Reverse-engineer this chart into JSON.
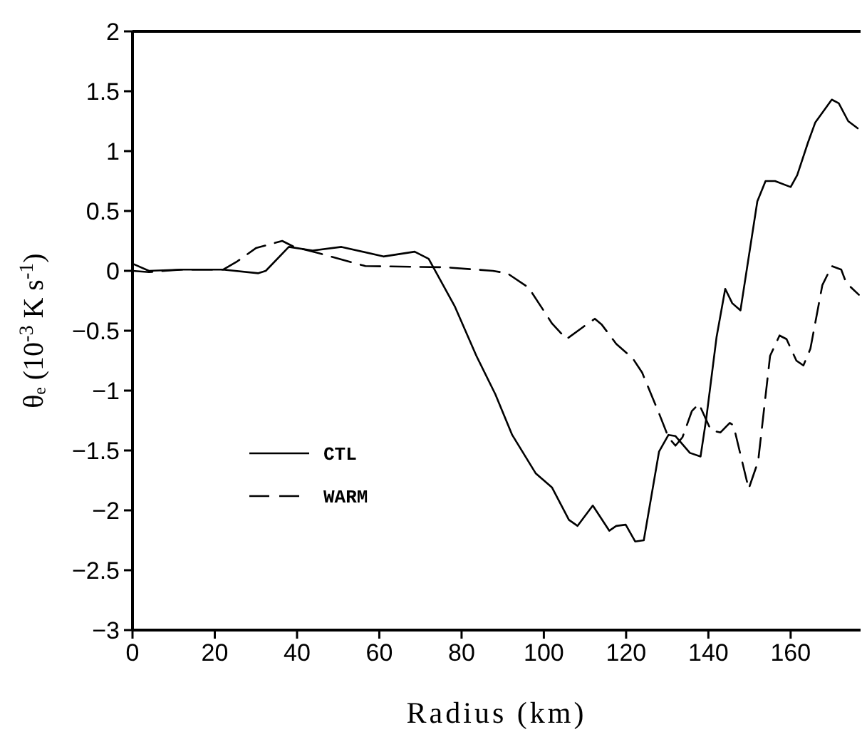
{
  "chart_data": {
    "type": "line",
    "xlabel": "Radius (km)",
    "ylabel": "θₑ (10$^{-3}$ K s$^{-1}$)",
    "xlim": [
      0,
      177
    ],
    "xticks": [
      0,
      20,
      40,
      60,
      80,
      100,
      120,
      140,
      160
    ],
    "ylim": [
      -3,
      2
    ],
    "yticks": [
      -3,
      -2.5,
      -2,
      -1.5,
      -1,
      -0.5,
      0,
      0.5,
      1,
      1.5,
      2
    ],
    "grid": false,
    "legend": "left",
    "marker": "none",
    "series": [
      {
        "name": "CTL",
        "color": "#000000",
        "line_style": "solid",
        "x": [
          0,
          4,
          12,
          22,
          30.6,
          32.4,
          38,
          43.8,
          50.8,
          61,
          68.6,
          72,
          78.4,
          83.6,
          88.2,
          92.3,
          98,
          102,
          106.1,
          108.2,
          111.9,
          115.9,
          117.6,
          119.9,
          122.2,
          124.3,
          128,
          130.3,
          132,
          135.5,
          138.1,
          139.5,
          142,
          144.1,
          145.8,
          147.8,
          151.9,
          153.9,
          156.2,
          160,
          161.6,
          164.2,
          166,
          170,
          171.7,
          174,
          176.3
        ],
        "values": [
          0.06,
          0,
          0.01,
          0.01,
          -0.02,
          0,
          0.2,
          0.17,
          0.2,
          0.12,
          0.16,
          0.1,
          -0.3,
          -0.71,
          -1.03,
          -1.37,
          -1.69,
          -1.81,
          -2.08,
          -2.13,
          -1.96,
          -2.17,
          -2.13,
          -2.12,
          -2.26,
          -2.25,
          -1.51,
          -1.37,
          -1.38,
          -1.52,
          -1.55,
          -1.23,
          -0.55,
          -0.15,
          -0.27,
          -0.33,
          0.58,
          0.75,
          0.75,
          0.7,
          0.8,
          1.07,
          1.24,
          1.43,
          1.4,
          1.25,
          1.19
        ]
      },
      {
        "name": "WARM",
        "color": "#000000",
        "line_style": "dashed",
        "x": [
          0,
          4,
          12,
          22,
          25.5,
          30,
          36.4,
          39.3,
          45,
          56.6,
          76,
          87.6,
          91.1,
          96.3,
          102,
          105.5,
          109.5,
          112.4,
          114.1,
          117.6,
          121.6,
          123.9,
          128,
          130.3,
          132,
          133.7,
          136,
          137.7,
          140.6,
          142.9,
          145.2,
          146.1,
          149.8,
          152.1,
          155,
          157.3,
          159,
          161.4,
          163.1,
          164.8,
          167.7,
          170,
          172.3,
          173.5,
          176.6
        ],
        "values": [
          0,
          -0.01,
          0.01,
          0.01,
          0.08,
          0.19,
          0.25,
          0.2,
          0.15,
          0.04,
          0.03,
          0,
          -0.02,
          -0.14,
          -0.44,
          -0.57,
          -0.47,
          -0.4,
          -0.45,
          -0.61,
          -0.73,
          -0.85,
          -1.19,
          -1.39,
          -1.46,
          -1.39,
          -1.17,
          -1.11,
          -1.33,
          -1.35,
          -1.27,
          -1.29,
          -1.82,
          -1.59,
          -0.71,
          -0.54,
          -0.57,
          -0.75,
          -0.79,
          -0.65,
          -0.12,
          0.04,
          0.01,
          -0.1,
          -0.2
        ]
      }
    ]
  }
}
